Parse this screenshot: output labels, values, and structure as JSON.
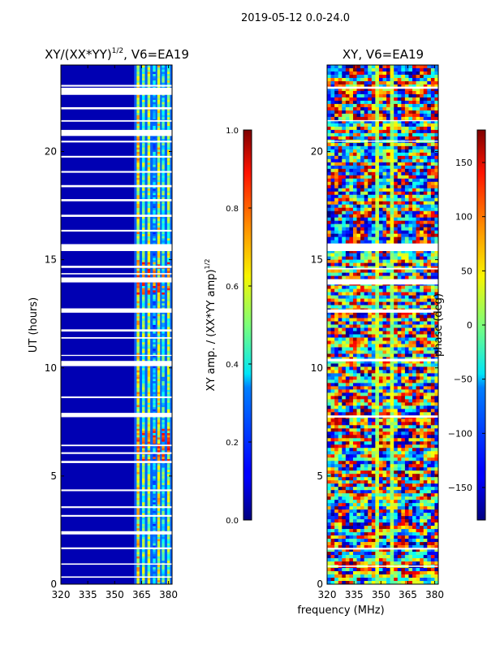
{
  "figure_title": "2019-05-12 0.0-24.0",
  "colors": {
    "masked_rows": "#ffffff",
    "colormap": "jet"
  },
  "chart_data": [
    {
      "type": "heatmap",
      "title_main": "XY/(XX*YY)",
      "title_sup": "1/2",
      "title_tail": ", V6=EA19",
      "xlabel": "",
      "ylabel": "UT (hours)",
      "xlim": [
        320,
        382
      ],
      "ylim": [
        0,
        24
      ],
      "xticks": [
        320,
        335,
        350,
        365,
        380
      ],
      "yticks": [
        0,
        5,
        10,
        15,
        20
      ],
      "colorbar": {
        "label_main": "XY amp. / (XX*YY amp)",
        "label_sup": "1/2",
        "range": [
          0.0,
          1.0
        ],
        "ticks": [
          "0.0",
          "0.2",
          "0.4",
          "0.6",
          "0.8",
          "1.0"
        ],
        "tick_values": [
          0.0,
          0.2,
          0.4,
          0.6,
          0.8,
          1.0
        ]
      },
      "gap_bands_hours": [
        [
          23.0,
          23.08
        ],
        [
          22.62,
          22.95
        ],
        [
          21.95,
          22.05
        ],
        [
          21.38,
          21.45
        ],
        [
          20.72,
          21.0
        ],
        [
          20.42,
          20.5
        ],
        [
          19.72,
          19.8
        ],
        [
          19.02,
          19.1
        ],
        [
          18.35,
          18.45
        ],
        [
          17.7,
          17.8
        ],
        [
          16.98,
          17.08
        ],
        [
          16.3,
          16.38
        ],
        [
          15.4,
          15.72
        ],
        [
          14.62,
          14.72
        ],
        [
          14.32,
          14.38
        ],
        [
          13.95,
          14.18
        ],
        [
          12.55,
          12.75
        ],
        [
          11.68,
          11.78
        ],
        [
          11.35,
          11.42
        ],
        [
          10.55,
          10.6
        ],
        [
          10.08,
          10.32
        ],
        [
          8.6,
          8.68
        ],
        [
          7.72,
          7.92
        ],
        [
          6.38,
          6.45
        ],
        [
          6.02,
          6.1
        ],
        [
          5.6,
          5.7
        ],
        [
          4.3,
          4.38
        ],
        [
          3.52,
          3.6
        ],
        [
          3.12,
          3.2
        ],
        [
          2.3,
          2.45
        ],
        [
          1.62,
          1.7
        ],
        [
          0.9,
          0.96
        ],
        [
          0.3,
          0.36
        ]
      ],
      "low_region_mhz": [
        320,
        361
      ],
      "low_value": 0.05,
      "active_columns": [
        {
          "mhz": 363.0,
          "value": 0.62
        },
        {
          "mhz": 366.0,
          "value": 0.48
        },
        {
          "mhz": 369.0,
          "value": 0.55
        },
        {
          "mhz": 372.0,
          "value": 0.3
        },
        {
          "mhz": 374.5,
          "value": 0.58
        },
        {
          "mhz": 377.0,
          "value": 0.4
        },
        {
          "mhz": 380.0,
          "value": 0.52
        }
      ],
      "hot_bands_hours": [
        [
          5.6,
          7.2
        ],
        [
          13.4,
          14.9
        ]
      ],
      "hot_value": 0.78
    },
    {
      "type": "heatmap",
      "title_main": "XY, V6=EA19",
      "xlabel": "frequency (MHz)",
      "ylabel": "",
      "xlim": [
        320,
        382
      ],
      "ylim": [
        0,
        24
      ],
      "xticks": [
        320,
        335,
        350,
        365,
        380
      ],
      "yticks": [
        0,
        5,
        10,
        15,
        20
      ],
      "colorbar": {
        "label_main": "phase (deg)",
        "range": [
          -180,
          180
        ],
        "ticks": [
          "150",
          "100",
          "50",
          "0",
          "−50",
          "−100",
          "−150"
        ],
        "tick_values": [
          150,
          100,
          50,
          0,
          -50,
          -100,
          -150
        ]
      },
      "gap_bands_hours": [
        [
          22.9,
          23.0
        ],
        [
          21.4,
          21.45
        ],
        [
          20.45,
          20.5
        ],
        [
          15.4,
          15.75
        ],
        [
          14.55,
          14.62
        ],
        [
          13.85,
          14.1
        ],
        [
          12.55,
          12.7
        ],
        [
          10.3,
          10.42
        ],
        [
          7.7,
          7.8
        ],
        [
          1.6,
          1.68
        ],
        [
          0.8,
          0.86
        ]
      ],
      "phase_trend": "random phase structure across band; vertical stripes near 347 MHz and 356 MHz"
    }
  ]
}
